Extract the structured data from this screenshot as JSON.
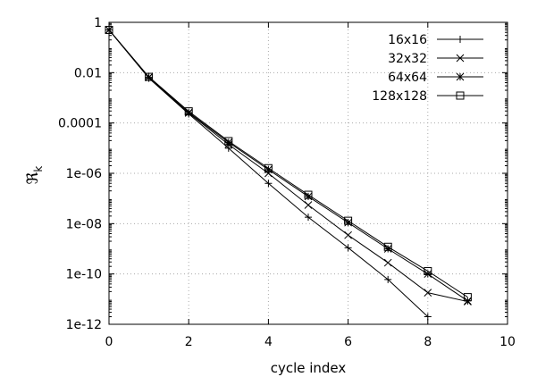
{
  "chart_data": {
    "type": "line",
    "title": "",
    "xlabel": "cycle index",
    "ylabel": "ℜ",
    "ylabel_subscript": "k",
    "xlim": [
      0,
      10
    ],
    "ylim": [
      1e-12,
      1
    ],
    "yscale": "log",
    "x_ticks": [
      0,
      2,
      4,
      6,
      8,
      10
    ],
    "x_tick_labels": [
      "0",
      "2",
      "4",
      "6",
      "8",
      "10"
    ],
    "y_ticks": [
      1e-12,
      1e-10,
      1e-08,
      1e-06,
      0.0001,
      0.01,
      1
    ],
    "y_tick_labels": [
      "1e-12",
      "1e-10",
      "1e-08",
      "1e-06",
      "0.0001",
      "0.01",
      "1"
    ],
    "grid": true,
    "legend_position": "top-right",
    "series": [
      {
        "name": "16x16",
        "marker": "plus",
        "x": [
          0,
          1,
          2,
          3,
          4,
          5,
          6,
          7,
          8
        ],
        "values": [
          0.5,
          0.006,
          0.00023,
          1e-05,
          4e-07,
          1.8e-08,
          1.1e-09,
          6e-11,
          2e-12
        ]
      },
      {
        "name": "32x32",
        "marker": "cross",
        "x": [
          0,
          1,
          2,
          3,
          4,
          5,
          6,
          7,
          8,
          9
        ],
        "values": [
          0.5,
          0.0065,
          0.00025,
          1.4e-05,
          1e-06,
          5.5e-08,
          3.5e-09,
          2.8e-10,
          1.8e-11,
          8e-12
        ]
      },
      {
        "name": "64x64",
        "marker": "star",
        "x": [
          0,
          1,
          2,
          3,
          4,
          5,
          6,
          7,
          8,
          9
        ],
        "values": [
          0.5,
          0.0066,
          0.00026,
          1.7e-05,
          1.4e-06,
          1.2e-07,
          1.1e-08,
          1e-09,
          1e-10,
          8.5e-12
        ]
      },
      {
        "name": "128x128",
        "marker": "square",
        "x": [
          0,
          1,
          2,
          3,
          4,
          5,
          6,
          7,
          8,
          9
        ],
        "values": [
          0.5,
          0.0068,
          0.00029,
          1.9e-05,
          1.6e-06,
          1.4e-07,
          1.3e-08,
          1.2e-09,
          1.3e-10,
          1.2e-11
        ]
      }
    ]
  }
}
